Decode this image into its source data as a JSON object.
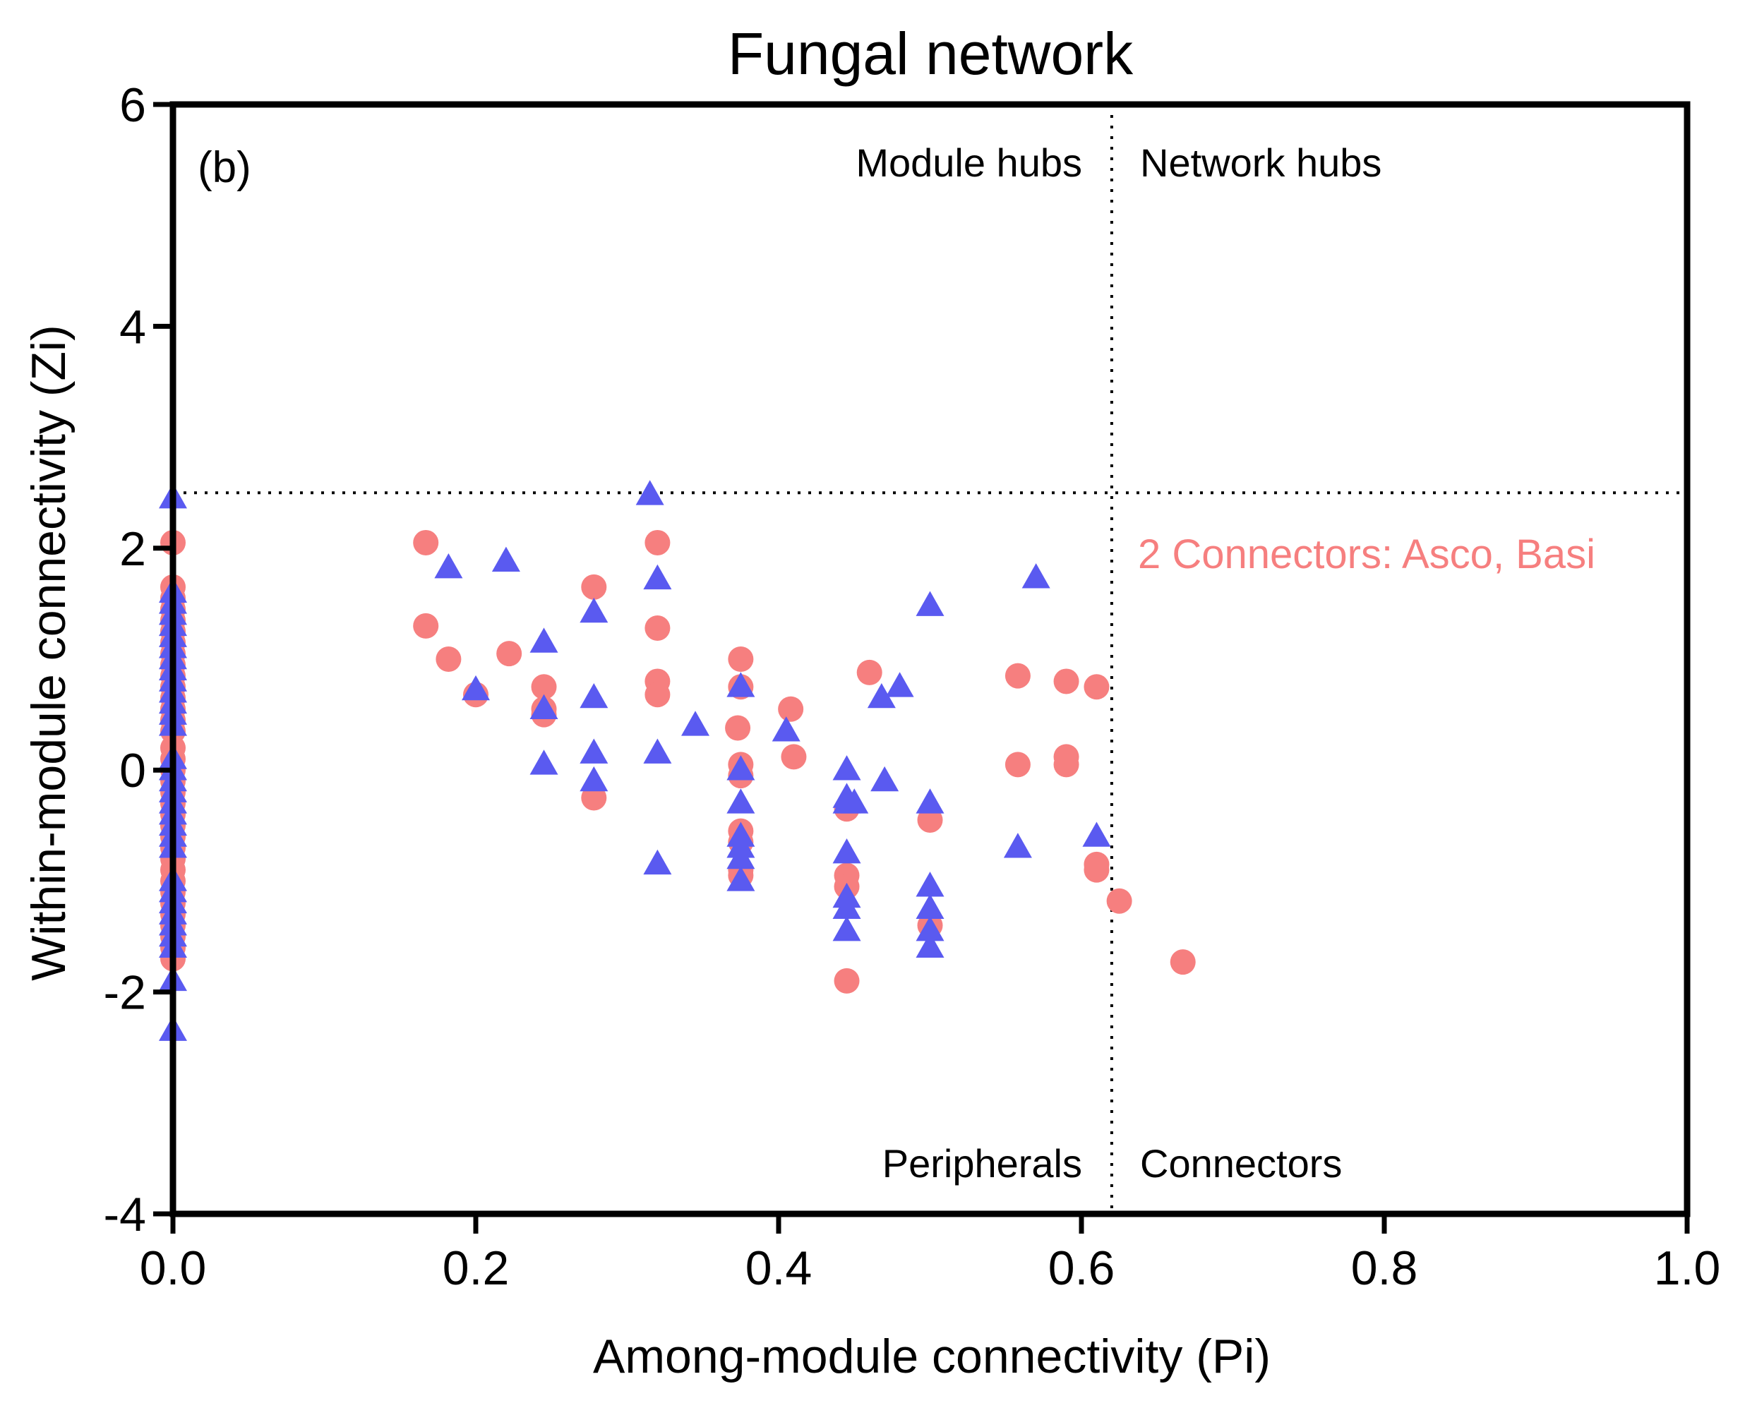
{
  "colors": {
    "circle": "#f67f7f",
    "triangle": "#5a5af0",
    "annotation": "#f67f7f",
    "axis": "#000000"
  },
  "chart_data": {
    "type": "scatter",
    "title": "Fungal network",
    "panel_label": "(b)",
    "xlabel": "Among-module connectivity (Pi)",
    "ylabel": "Within-module connectivity (Zi)",
    "xlim": [
      0,
      1.0
    ],
    "ylim": [
      -4,
      6
    ],
    "xticks": [
      0.0,
      0.2,
      0.4,
      0.6,
      0.8,
      1.0
    ],
    "xtick_labels": [
      "0.0",
      "0.2",
      "0.4",
      "0.6",
      "0.8",
      "1.0"
    ],
    "yticks": [
      -4,
      -2,
      0,
      2,
      4,
      6
    ],
    "ytick_labels": [
      "-4",
      "-2",
      "0",
      "2",
      "4",
      "6"
    ],
    "thresholds": {
      "pi": 0.62,
      "zi": 2.5
    },
    "quadrant_labels": {
      "top_left": "Module hubs",
      "top_right": "Network hubs",
      "bottom_left": "Peripherals",
      "bottom_right": "Connectors"
    },
    "annotation": "2 Connectors: Asco, Basi",
    "series": [
      {
        "name": "circles",
        "marker": "circle",
        "points": [
          [
            0.0,
            2.05
          ],
          [
            0.0,
            1.65
          ],
          [
            0.0,
            1.55
          ],
          [
            0.0,
            1.45
          ],
          [
            0.0,
            1.35
          ],
          [
            0.0,
            1.25
          ],
          [
            0.0,
            1.15
          ],
          [
            0.0,
            1.05
          ],
          [
            0.0,
            0.95
          ],
          [
            0.0,
            0.85
          ],
          [
            0.0,
            0.75
          ],
          [
            0.0,
            0.65
          ],
          [
            0.0,
            0.55
          ],
          [
            0.0,
            0.45
          ],
          [
            0.0,
            0.35
          ],
          [
            0.0,
            0.2
          ],
          [
            0.0,
            0.1
          ],
          [
            0.0,
            0.0
          ],
          [
            0.0,
            -0.1
          ],
          [
            0.0,
            -0.2
          ],
          [
            0.0,
            -0.3
          ],
          [
            0.0,
            -0.4
          ],
          [
            0.0,
            -0.5
          ],
          [
            0.0,
            -0.6
          ],
          [
            0.0,
            -0.7
          ],
          [
            0.0,
            -0.8
          ],
          [
            0.0,
            -0.9
          ],
          [
            0.0,
            -1.0
          ],
          [
            0.0,
            -1.1
          ],
          [
            0.0,
            -1.2
          ],
          [
            0.0,
            -1.3
          ],
          [
            0.0,
            -1.4
          ],
          [
            0.0,
            -1.5
          ],
          [
            0.0,
            -1.6
          ],
          [
            0.0,
            -1.7
          ],
          [
            0.167,
            2.05
          ],
          [
            0.167,
            1.3
          ],
          [
            0.182,
            1.0
          ],
          [
            0.2,
            0.68
          ],
          [
            0.222,
            1.05
          ],
          [
            0.245,
            0.75
          ],
          [
            0.245,
            0.55
          ],
          [
            0.245,
            0.5
          ],
          [
            0.278,
            1.65
          ],
          [
            0.278,
            -0.25
          ],
          [
            0.32,
            2.05
          ],
          [
            0.32,
            1.28
          ],
          [
            0.32,
            0.8
          ],
          [
            0.32,
            0.68
          ],
          [
            0.373,
            0.38
          ],
          [
            0.375,
            1.0
          ],
          [
            0.375,
            0.75
          ],
          [
            0.375,
            0.05
          ],
          [
            0.375,
            -0.05
          ],
          [
            0.375,
            -0.55
          ],
          [
            0.375,
            -0.65
          ],
          [
            0.375,
            -0.9
          ],
          [
            0.375,
            -0.95
          ],
          [
            0.408,
            0.55
          ],
          [
            0.41,
            0.12
          ],
          [
            0.445,
            -0.35
          ],
          [
            0.445,
            -0.95
          ],
          [
            0.445,
            -1.05
          ],
          [
            0.445,
            -1.9
          ],
          [
            0.46,
            0.88
          ],
          [
            0.5,
            -0.45
          ],
          [
            0.5,
            -1.4
          ],
          [
            0.558,
            0.85
          ],
          [
            0.558,
            0.05
          ],
          [
            0.59,
            0.8
          ],
          [
            0.59,
            0.12
          ],
          [
            0.59,
            0.05
          ],
          [
            0.61,
            0.75
          ],
          [
            0.61,
            -0.85
          ],
          [
            0.61,
            -0.9
          ],
          [
            0.625,
            -1.18
          ],
          [
            0.667,
            -1.73
          ]
        ]
      },
      {
        "name": "triangles",
        "marker": "triangle",
        "points": [
          [
            0.0,
            2.45
          ],
          [
            0.0,
            1.6
          ],
          [
            0.0,
            1.5
          ],
          [
            0.0,
            1.4
          ],
          [
            0.0,
            1.3
          ],
          [
            0.0,
            1.2
          ],
          [
            0.0,
            1.1
          ],
          [
            0.0,
            1.0
          ],
          [
            0.0,
            0.9
          ],
          [
            0.0,
            0.8
          ],
          [
            0.0,
            0.7
          ],
          [
            0.0,
            0.6
          ],
          [
            0.0,
            0.5
          ],
          [
            0.0,
            0.4
          ],
          [
            0.0,
            0.1
          ],
          [
            0.0,
            0.0
          ],
          [
            0.0,
            -0.1
          ],
          [
            0.0,
            -0.2
          ],
          [
            0.0,
            -0.3
          ],
          [
            0.0,
            -0.4
          ],
          [
            0.0,
            -0.5
          ],
          [
            0.0,
            -0.6
          ],
          [
            0.0,
            -0.7
          ],
          [
            0.0,
            -1.0
          ],
          [
            0.0,
            -1.1
          ],
          [
            0.0,
            -1.2
          ],
          [
            0.0,
            -1.3
          ],
          [
            0.0,
            -1.4
          ],
          [
            0.0,
            -1.5
          ],
          [
            0.0,
            -1.6
          ],
          [
            0.0,
            -1.9
          ],
          [
            0.0,
            -2.35
          ],
          [
            0.182,
            1.82
          ],
          [
            0.2,
            0.72
          ],
          [
            0.22,
            1.88
          ],
          [
            0.245,
            1.15
          ],
          [
            0.245,
            0.55
          ],
          [
            0.245,
            0.05
          ],
          [
            0.278,
            1.42
          ],
          [
            0.278,
            0.65
          ],
          [
            0.278,
            0.15
          ],
          [
            0.278,
            -0.1
          ],
          [
            0.315,
            2.48
          ],
          [
            0.32,
            1.72
          ],
          [
            0.32,
            0.15
          ],
          [
            0.32,
            -0.85
          ],
          [
            0.345,
            0.4
          ],
          [
            0.375,
            0.75
          ],
          [
            0.375,
            0.0
          ],
          [
            0.375,
            -0.3
          ],
          [
            0.375,
            -0.6
          ],
          [
            0.375,
            -0.7
          ],
          [
            0.375,
            -0.8
          ],
          [
            0.375,
            -1.0
          ],
          [
            0.405,
            0.35
          ],
          [
            0.445,
            0.0
          ],
          [
            0.445,
            -0.25
          ],
          [
            0.445,
            -0.3
          ],
          [
            0.445,
            -0.75
          ],
          [
            0.445,
            -1.15
          ],
          [
            0.445,
            -1.25
          ],
          [
            0.445,
            -1.45
          ],
          [
            0.45,
            -0.3
          ],
          [
            0.468,
            0.65
          ],
          [
            0.47,
            -0.1
          ],
          [
            0.48,
            0.75
          ],
          [
            0.5,
            1.48
          ],
          [
            0.5,
            -0.3
          ],
          [
            0.5,
            -1.05
          ],
          [
            0.5,
            -1.25
          ],
          [
            0.5,
            -1.45
          ],
          [
            0.5,
            -1.6
          ],
          [
            0.558,
            -0.7
          ],
          [
            0.57,
            1.73
          ],
          [
            0.61,
            -0.6
          ]
        ]
      }
    ]
  }
}
